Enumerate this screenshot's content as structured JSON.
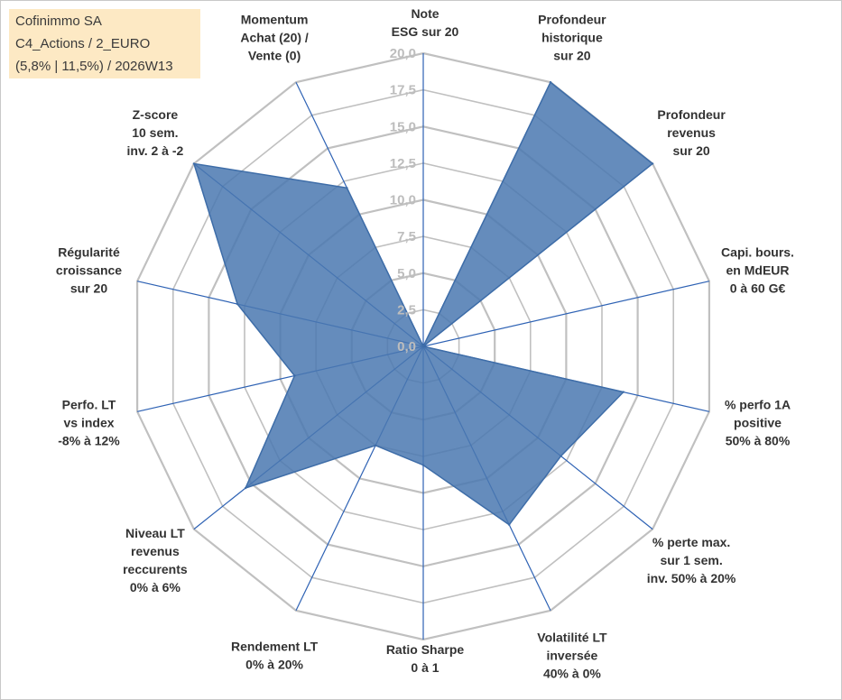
{
  "info_box": {
    "line1": "Cofinimmo SA",
    "line2": "C4_Actions / 2_EURO",
    "line3": "(5,8% | 11,5%) / 2026W13"
  },
  "colors": {
    "grid": "#c0c0c0",
    "spoke": "#2e62b4",
    "fill": "#4a78b0",
    "stroke": "#3e6da8",
    "tick_text": "#bdbdbd",
    "label_text": "#333333",
    "info_bg": "#fde9c4"
  },
  "chart_data": {
    "type": "radar",
    "title": "",
    "range": [
      0,
      20
    ],
    "ticks": [
      "0,0",
      "2,5",
      "5,0",
      "7,5",
      "10,0",
      "12,5",
      "15,0",
      "17,5",
      "20,0"
    ],
    "axes": [
      {
        "lines": [
          "Note",
          "ESG sur 20"
        ],
        "value": 0
      },
      {
        "lines": [
          "Profondeur",
          "historique",
          "sur 20"
        ],
        "value": 20
      },
      {
        "lines": [
          "Profondeur",
          "revenus",
          "sur 20"
        ],
        "value": 20
      },
      {
        "lines": [
          "Capi. bours.",
          "en MdEUR",
          "0 à 60 G€"
        ],
        "value": 0
      },
      {
        "lines": [
          "% perfo 1A",
          "positive",
          "50% à 80%"
        ],
        "value": 14
      },
      {
        "lines": [
          "% perte max.",
          "sur 1 sem.",
          "inv. 50% à 20%"
        ],
        "value": 12
      },
      {
        "lines": [
          "Volatilité LT",
          "inversée",
          "40% à 0%"
        ],
        "value": 13.5
      },
      {
        "lines": [
          "Ratio Sharpe",
          "0 à 1"
        ],
        "value": 8.1
      },
      {
        "lines": [
          "Rendement LT",
          "0% à 20%"
        ],
        "value": 7.5
      },
      {
        "lines": [
          "Niveau LT",
          "revenus",
          "reccurents",
          "0% à 6%"
        ],
        "value": 15.5
      },
      {
        "lines": [
          "Perfo. LT",
          "vs index",
          "-8% à 12%"
        ],
        "value": 9
      },
      {
        "lines": [
          "Régularité",
          "croissance",
          "sur 20"
        ],
        "value": 13
      },
      {
        "lines": [
          "Z-score",
          "10 sem.",
          "inv. 2 à -2"
        ],
        "value": 20
      },
      {
        "lines": [
          "Momentum",
          "Achat (20) /",
          "Vente (0)"
        ],
        "value": 12
      }
    ]
  }
}
